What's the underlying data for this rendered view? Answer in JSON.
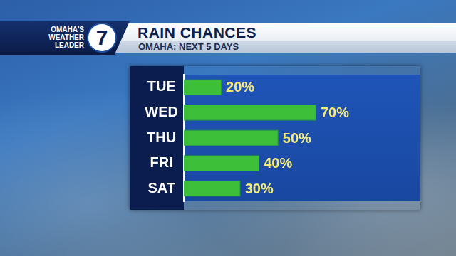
{
  "logo": {
    "lines": [
      "OMAHA'S",
      "WEATHER",
      "LEADER"
    ],
    "number": "7"
  },
  "chart_data": {
    "type": "bar",
    "title": "RAIN CHANCES",
    "subtitle": "OMAHA: NEXT 5 DAYS",
    "orientation": "horizontal",
    "categories": [
      "TUE",
      "WED",
      "THU",
      "FRI",
      "SAT"
    ],
    "values": [
      20,
      70,
      50,
      40,
      30
    ],
    "value_labels": [
      "20%",
      "70%",
      "50%",
      "40%",
      "30%"
    ],
    "color": "#3dbf3a",
    "xlim": [
      0,
      125
    ],
    "grid": false,
    "data_labels": true,
    "tick_labels": "y"
  }
}
